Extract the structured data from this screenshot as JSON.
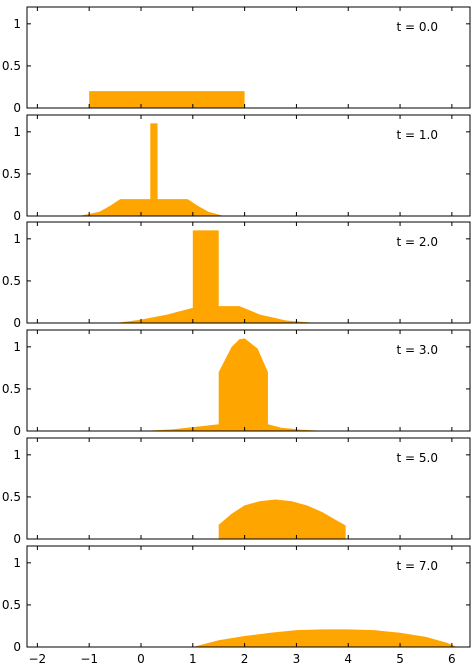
{
  "chart_data": {
    "type": "area",
    "color": "#FFA500",
    "x_ticks": [
      -2,
      -1,
      0,
      1,
      2,
      3,
      4,
      5,
      6
    ],
    "x_tick_labels": [
      "−2",
      "−1",
      "0",
      "1",
      "2",
      "3",
      "4",
      "5",
      "6"
    ],
    "xlim": [
      -2.2,
      6.35
    ],
    "ylim": [
      0,
      1.2
    ],
    "y_ticks": [
      0,
      0.5,
      1
    ],
    "y_tick_labels": [
      "0",
      "0.5",
      "1"
    ],
    "grid": false,
    "panels": [
      {
        "label": "t = 0.0",
        "x": [
          -1.0,
          -1.0,
          2.0,
          2.0
        ],
        "y": [
          0.0,
          0.2,
          0.2,
          0.0
        ]
      },
      {
        "label": "t = 1.0",
        "x": [
          -2.2,
          -1.2,
          -0.8,
          -0.6,
          -0.4,
          0.18,
          0.18,
          0.32,
          0.32,
          0.9,
          1.1,
          1.3,
          1.6,
          2.2
        ],
        "y": [
          0,
          0.0,
          0.05,
          0.12,
          0.2,
          0.2,
          1.1,
          1.1,
          0.2,
          0.2,
          0.12,
          0.05,
          0.0,
          0
        ]
      },
      {
        "label": "t = 2.0",
        "x": [
          -2.2,
          -0.5,
          0.0,
          0.5,
          1.0,
          1.0,
          1.5,
          1.5,
          1.9,
          2.3,
          2.8,
          3.4,
          4.0
        ],
        "y": [
          0,
          0.0,
          0.04,
          0.1,
          0.18,
          1.1,
          1.1,
          0.2,
          0.2,
          0.1,
          0.03,
          0.0,
          0
        ]
      },
      {
        "label": "t = 3.0",
        "x": [
          -2.2,
          0.0,
          0.6,
          1.2,
          1.5,
          1.5,
          1.75,
          1.9,
          2.0,
          2.25,
          2.45,
          2.45,
          2.7,
          3.1,
          3.6,
          4.2
        ],
        "y": [
          0,
          0.0,
          0.02,
          0.06,
          0.08,
          0.7,
          1.0,
          1.09,
          1.1,
          0.98,
          0.7,
          0.08,
          0.04,
          0.015,
          0.0,
          0
        ]
      },
      {
        "label": "t = 5.0",
        "x": [
          -2.2,
          1.0,
          1.5,
          1.5,
          1.75,
          2.0,
          2.3,
          2.6,
          2.9,
          3.2,
          3.5,
          3.75,
          3.95,
          3.95,
          4.3,
          6.35
        ],
        "y": [
          0,
          0.0,
          0.005,
          0.17,
          0.3,
          0.4,
          0.45,
          0.47,
          0.45,
          0.4,
          0.32,
          0.23,
          0.16,
          0.0,
          0.0,
          0
        ]
      },
      {
        "label": "t = 7.0",
        "x": [
          -2.2,
          1.0,
          1.5,
          2.0,
          2.5,
          3.0,
          3.5,
          4.0,
          4.5,
          5.0,
          5.5,
          5.9,
          6.1,
          6.35
        ],
        "y": [
          0,
          0.0,
          0.08,
          0.13,
          0.17,
          0.2,
          0.21,
          0.21,
          0.2,
          0.17,
          0.12,
          0.05,
          0.0,
          0
        ]
      }
    ]
  }
}
